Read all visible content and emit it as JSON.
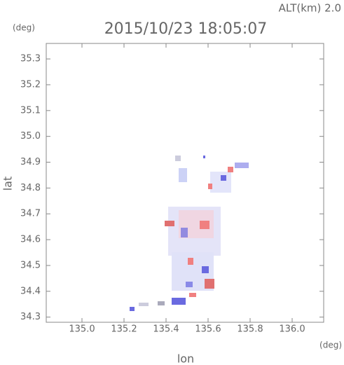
{
  "chart_data": {
    "type": "field",
    "title": "2015/10/23 18:05:07",
    "annotation": "ALT(km) 2.0",
    "y_unit": "(deg)",
    "x_unit": "(deg)",
    "xlabel": "lon",
    "ylabel": "lat",
    "xlim": [
      134.83,
      136.15
    ],
    "ylim": [
      34.28,
      35.36
    ],
    "xticks": [
      {
        "value": 135,
        "label": "135.0"
      },
      135.2,
      135.4,
      135.6,
      135.8,
      {
        "value": 136,
        "label": "136.0"
      }
    ],
    "yticks": [
      34.3,
      34.4,
      34.5,
      34.6,
      34.7,
      34.8,
      34.9,
      {
        "value": 35,
        "label": "35.0"
      },
      35.1,
      35.2,
      35.3
    ]
  }
}
